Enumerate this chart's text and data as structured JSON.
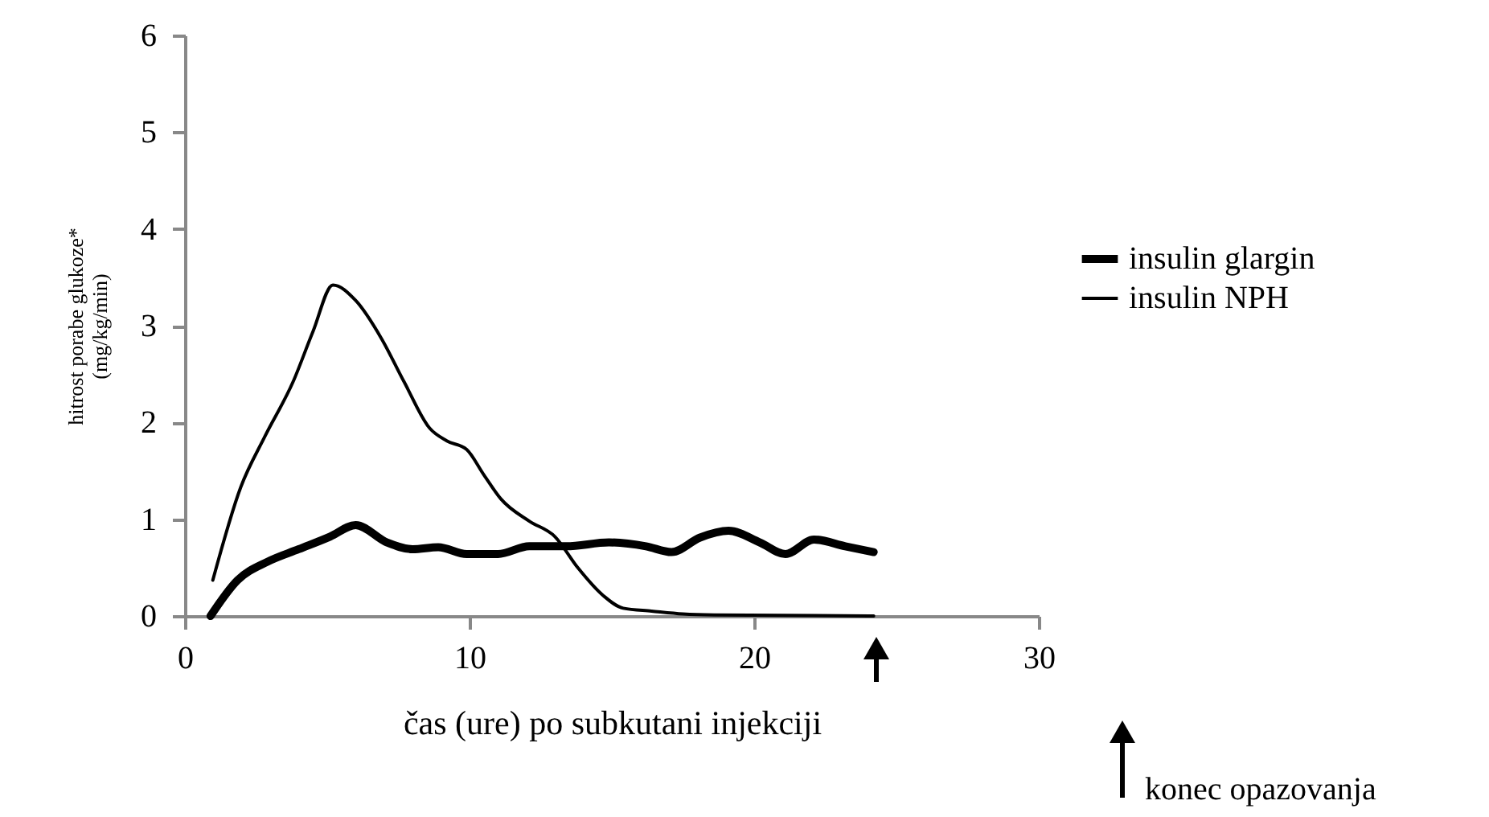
{
  "chart_data": {
    "type": "line",
    "xlabel": "čas (ure) po subkutani injekciji",
    "ylabel": "hitrost porabe glukoze*\n(mg/kg/min)",
    "xlim": [
      0,
      30
    ],
    "xticks": [
      0,
      10,
      20,
      30
    ],
    "ylim": [
      0,
      6
    ],
    "yticks": [
      0,
      1,
      2,
      3,
      4,
      5,
      6
    ],
    "grid": false,
    "legend": "right",
    "marker": "none",
    "line_style": "solid",
    "annotations": [
      "konec opazovanja"
    ],
    "series": [
      {
        "name": "insulin glargin",
        "color": "#000000",
        "x": [
          0.9,
          1.85,
          2.9,
          4.0,
          5.1,
          6.0,
          7.1,
          8.0,
          8.9,
          9.9,
          11.0,
          12.1,
          13.4,
          14.9,
          16.2,
          17.1,
          18.1,
          19.1,
          20.2,
          21.1,
          22.1,
          23.2,
          24.2
        ],
        "values": [
          0,
          0.37,
          0.56,
          0.69,
          0.82,
          0.94,
          0.76,
          0.69,
          0.71,
          0.64,
          0.64,
          0.72,
          0.72,
          0.76,
          0.72,
          0.66,
          0.81,
          0.88,
          0.76,
          0.64,
          0.79,
          0.72,
          0.66
        ]
      },
      {
        "name": "insulin NPH",
        "color": "#000000",
        "x": [
          0.98,
          1.96,
          2.8,
          3.8,
          4.5,
          5.2,
          6.0,
          6.9,
          7.7,
          8.6,
          9.2,
          9.9,
          10.5,
          11.1,
          12.1,
          13.0,
          13.8,
          14.7,
          15.4,
          16.4,
          17.5,
          18.6,
          24.2
        ],
        "values": [
          0.37,
          1.33,
          1.85,
          2.42,
          2.94,
          3.42,
          3.26,
          2.87,
          2.42,
          1.94,
          1.81,
          1.72,
          1.46,
          1.21,
          0.98,
          0.82,
          0.5,
          0.21,
          0.08,
          0.05,
          0.02,
          0.01,
          0
        ]
      }
    ]
  }
}
